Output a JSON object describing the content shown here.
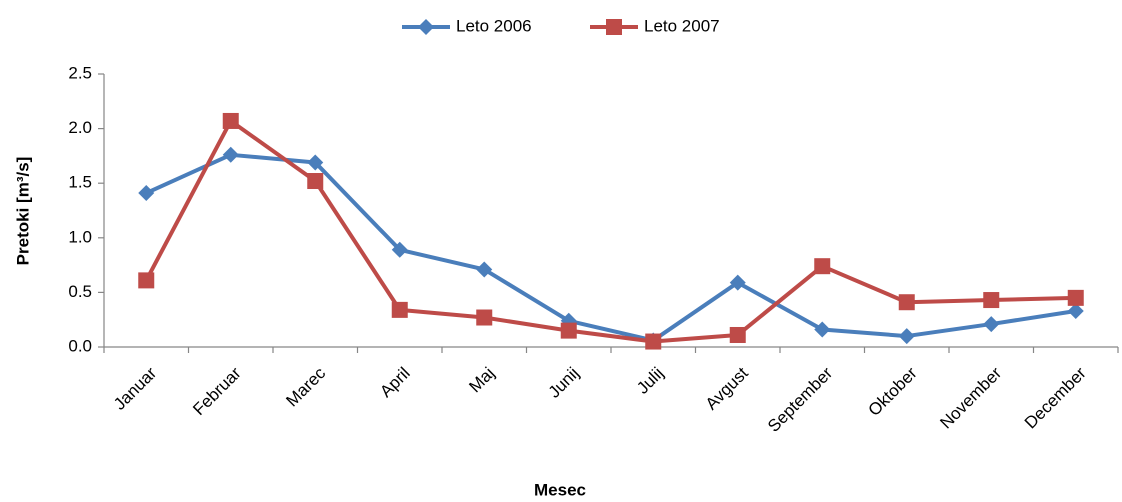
{
  "chart_data": {
    "type": "line",
    "x_label": "Mesec",
    "y_label": "Pretoki [m³/s]",
    "categories": [
      "Januar",
      "Februar",
      "Marec",
      "April",
      "Maj",
      "Junij",
      "Julij",
      "Avgust",
      "September",
      "Oktober",
      "November",
      "December"
    ],
    "series": [
      {
        "name": "Leto 2006",
        "color": "#4a7ebb",
        "marker": "diamond",
        "values": [
          1.41,
          1.76,
          1.69,
          0.89,
          0.71,
          0.24,
          0.06,
          0.59,
          0.16,
          0.1,
          0.21,
          0.33
        ]
      },
      {
        "name": "Leto 2007",
        "color": "#be4b48",
        "marker": "square",
        "values": [
          0.61,
          2.07,
          1.52,
          0.34,
          0.27,
          0.15,
          0.05,
          0.11,
          0.74,
          0.41,
          0.43,
          0.45
        ]
      }
    ],
    "ylim": [
      0,
      2.5
    ],
    "yticks": [
      {
        "value": 0,
        "label": "0.0"
      },
      0.5,
      {
        "value": 1,
        "label": "1.0"
      },
      1.5,
      {
        "value": 2,
        "label": "2.0"
      },
      2.5
    ],
    "grid": false,
    "legend": "top"
  }
}
